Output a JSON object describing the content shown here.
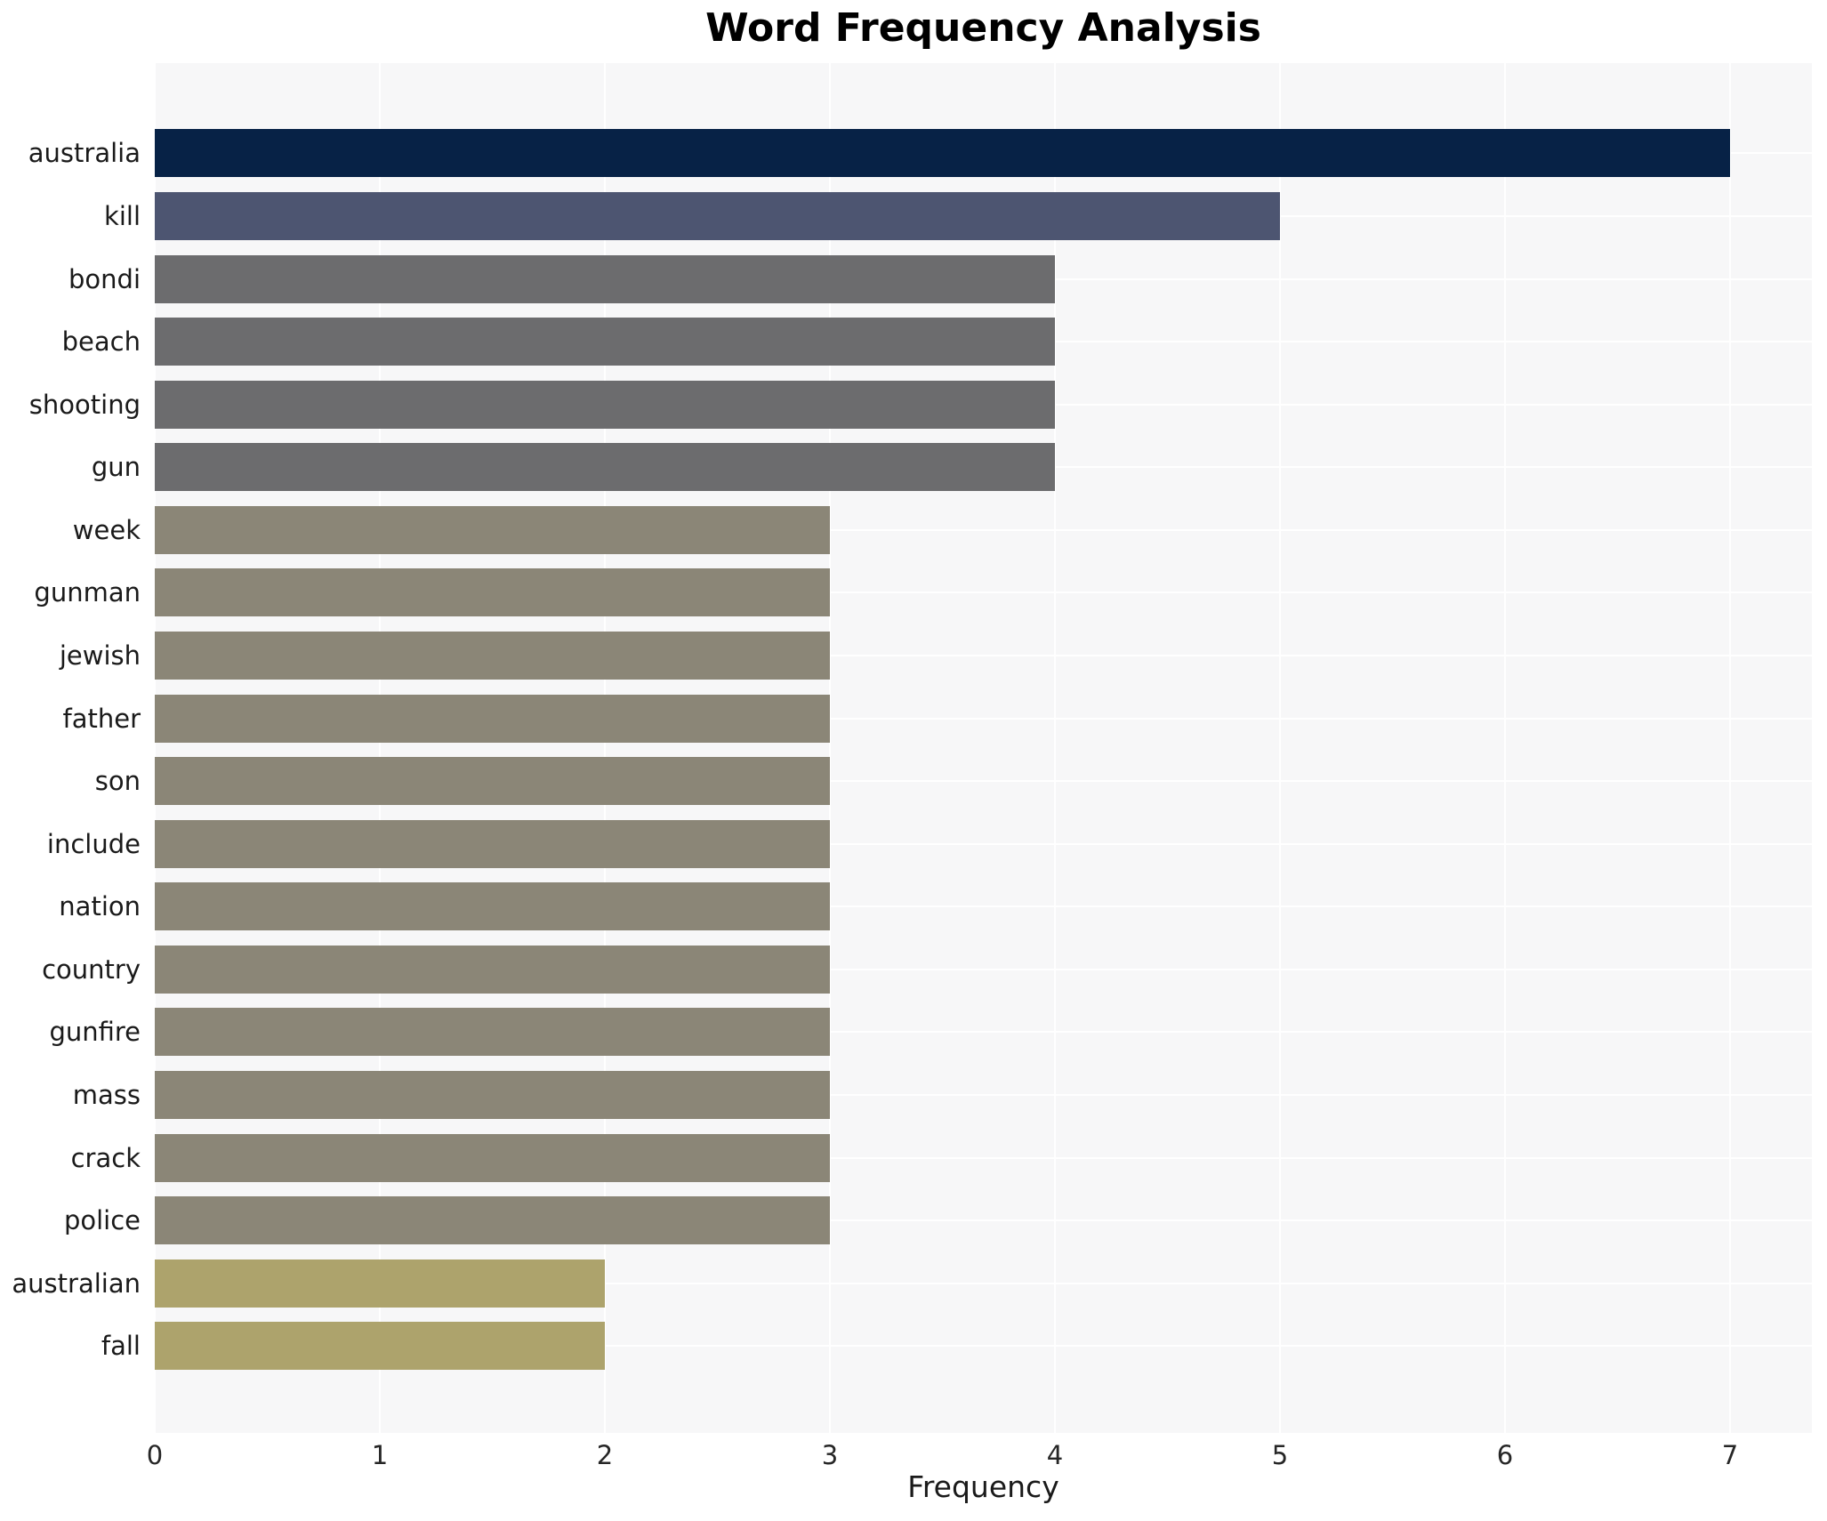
{
  "title": "Word Frequency Analysis",
  "chart_data": {
    "type": "bar",
    "orientation": "horizontal",
    "title": "Word Frequency Analysis",
    "xlabel": "Frequency",
    "ylabel": "",
    "categories": [
      "australia",
      "kill",
      "bondi",
      "beach",
      "shooting",
      "gun",
      "week",
      "gunman",
      "jewish",
      "father",
      "son",
      "include",
      "nation",
      "country",
      "gunfire",
      "mass",
      "crack",
      "police",
      "australian",
      "fall"
    ],
    "values": [
      7,
      5,
      4,
      4,
      4,
      4,
      3,
      3,
      3,
      3,
      3,
      3,
      3,
      3,
      3,
      3,
      3,
      3,
      2,
      2
    ],
    "xticks": [
      0,
      1,
      2,
      3,
      4,
      5,
      6,
      7
    ],
    "xlim": [
      0,
      7.36
    ],
    "grid": true,
    "legend": "none",
    "colors": {
      "plot_background": "#f7f7f8",
      "grid_color": "#ffffff",
      "value_color_map": {
        "7": "#072246",
        "5": "#4d5571",
        "4": "#6c6c6e",
        "3": "#8b8677",
        "2": "#ada36c"
      },
      "text_color": "#1a1a1a",
      "tick_color": "#262626",
      "title_color": "#000000"
    }
  }
}
